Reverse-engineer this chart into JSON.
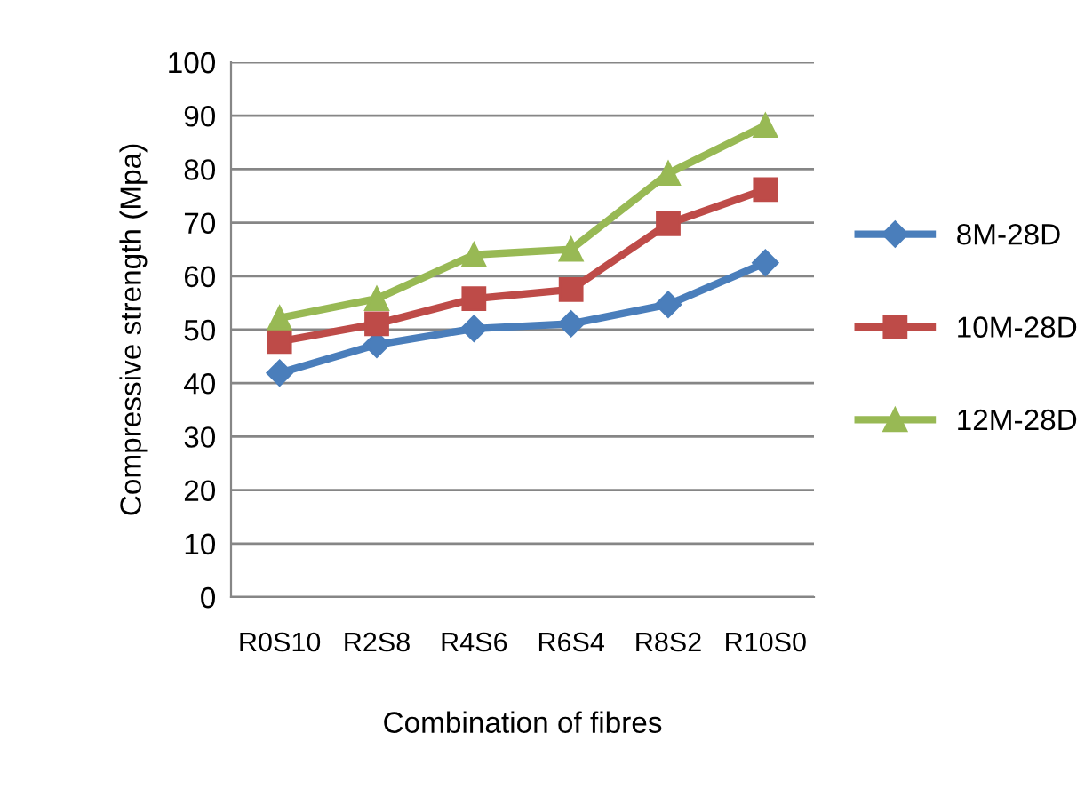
{
  "chart_data": {
    "type": "line",
    "xlabel": "Combination of fibres",
    "ylabel": "Compressive strength (Mpa)",
    "categories": [
      "R0S10",
      "R2S8",
      "R4S6",
      "R6S4",
      "R8S2",
      "R10S0"
    ],
    "series": [
      {
        "name": "8M-28D",
        "color": "#4a7ebb",
        "marker": "diamond",
        "values": [
          41.9,
          47.2,
          50.2,
          51.1,
          54.7,
          62.5
        ]
      },
      {
        "name": "10M-28D",
        "color": "#be4b48",
        "marker": "square",
        "values": [
          47.8,
          51.1,
          55.8,
          57.5,
          69.8,
          76.2
        ]
      },
      {
        "name": "12M-28D",
        "color": "#98b954",
        "marker": "triangle",
        "values": [
          52.2,
          55.8,
          64.0,
          65.0,
          79.2,
          88.2
        ]
      }
    ],
    "ylim": [
      0,
      100
    ],
    "yticks": [
      0,
      10,
      20,
      30,
      40,
      50,
      60,
      70,
      80,
      90,
      100
    ],
    "grid": "y",
    "legend": "right",
    "line_style": "solid"
  }
}
